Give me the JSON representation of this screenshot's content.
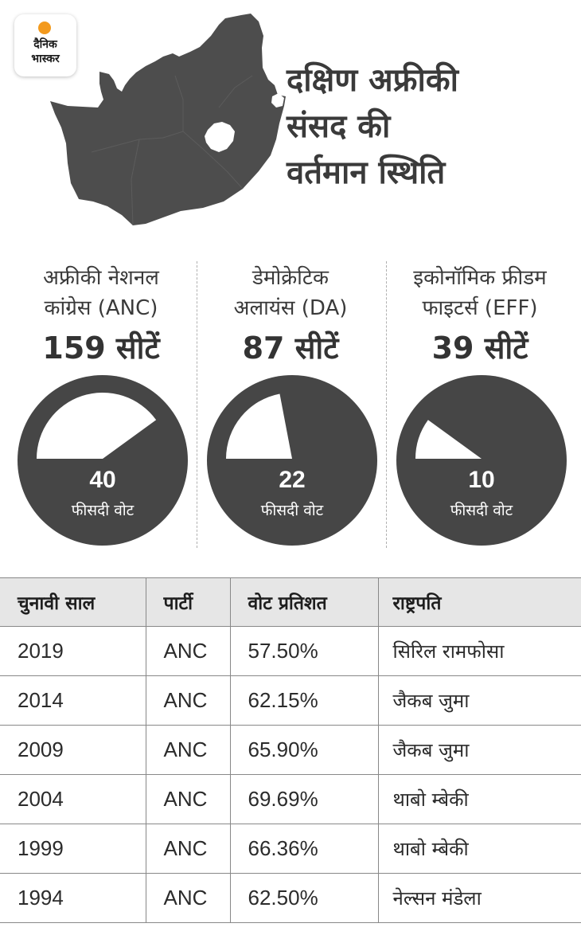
{
  "logo": {
    "line1": "दैनिक",
    "line2": "भास्कर"
  },
  "title": {
    "line1": "दक्षिण अफ्रीकी",
    "line2": "संसद की",
    "line3": "वर्तमान स्थिति"
  },
  "parties": [
    {
      "name_line1": "अफ्रीकी नेशनल",
      "name_line2": "कांग्रेस (ANC)",
      "seats": "159 सीटें",
      "vote_pct": "40",
      "vote_label": "फीसदी वोट"
    },
    {
      "name_line1": "डेमोक्रेटिक",
      "name_line2": "अलायंस (DA)",
      "seats": "87 सीटें",
      "vote_pct": "22",
      "vote_label": "फीसदी वोट"
    },
    {
      "name_line1": "इकोनॉमिक फ्रीडम",
      "name_line2": "फाइटर्स (EFF)",
      "seats": "39 सीटें",
      "vote_pct": "10",
      "vote_label": "फीसदी वोट"
    }
  ],
  "colors": {
    "dark": "#464646",
    "map": "#4d4d4d",
    "header_bg": "#e6e6e6",
    "accent": "#f39a1e"
  },
  "chart_data": {
    "type": "pie",
    "categories": [
      "ANC",
      "DA",
      "EFF"
    ],
    "values": [
      40,
      22,
      10
    ],
    "seats": [
      159,
      87,
      39
    ],
    "title": "दक्षिण अफ्रीकी संसद की वर्तमान स्थिति"
  },
  "table": {
    "headers": [
      "चुनावी साल",
      "पार्टी",
      "वोट प्रतिशत",
      "राष्ट्रपति"
    ],
    "rows": [
      [
        "2019",
        "ANC",
        "57.50%",
        "सिरिल रामफोसा"
      ],
      [
        "2014",
        "ANC",
        "62.15%",
        "जैकब जुमा"
      ],
      [
        "2009",
        "ANC",
        "65.90%",
        "जैकब जुमा"
      ],
      [
        "2004",
        "ANC",
        "69.69%",
        "थाबो म्बेकी"
      ],
      [
        "1999",
        "ANC",
        "66.36%",
        "थाबो म्बेकी"
      ],
      [
        "1994",
        "ANC",
        "62.50%",
        "नेल्सन मंडेला"
      ]
    ]
  }
}
